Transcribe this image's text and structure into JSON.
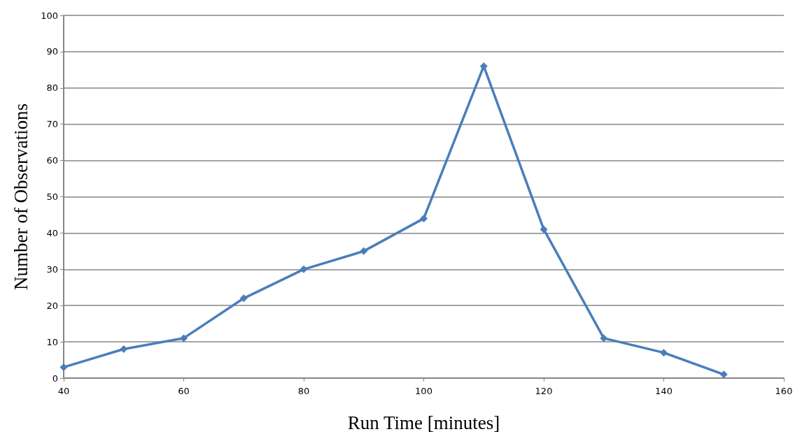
{
  "chart_data": {
    "type": "line",
    "xlabel": "Run Time [minutes]",
    "ylabel": "Number of Observations",
    "x": [
      40,
      50,
      60,
      70,
      80,
      90,
      100,
      110,
      120,
      130,
      140,
      150
    ],
    "series": [
      {
        "color": "#4a7ebb",
        "values": [
          3,
          8,
          11,
          22,
          30,
          35,
          44,
          86,
          41,
          11,
          7,
          1
        ]
      }
    ],
    "xlim": [
      40,
      160
    ],
    "xticks": [
      40,
      60,
      80,
      100,
      120,
      140,
      160
    ],
    "ylim": [
      0,
      100
    ],
    "yticks": [
      0,
      10,
      20,
      30,
      40,
      50,
      60,
      70,
      80,
      90,
      100
    ],
    "grid": "y",
    "marker": "diamond",
    "line_style": "solid"
  }
}
